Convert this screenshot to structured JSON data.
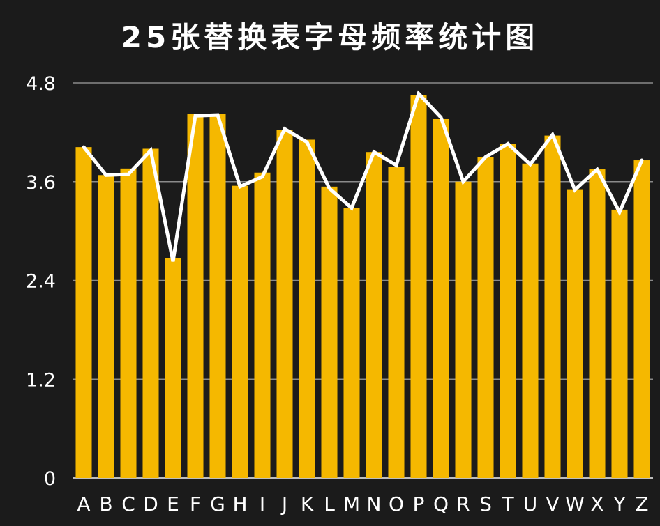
{
  "chart_data": {
    "type": "bar",
    "title": "25张替换表字母频率统计图",
    "xlabel": "",
    "ylabel": "",
    "ylim": [
      0,
      4.8
    ],
    "yticks": [
      "0",
      "1.2",
      "2.4",
      "3.6",
      "4.8"
    ],
    "grid": true,
    "categories": [
      "A",
      "B",
      "C",
      "D",
      "E",
      "F",
      "G",
      "H",
      "I",
      "J",
      "K",
      "L",
      "M",
      "N",
      "O",
      "P",
      "Q",
      "R",
      "S",
      "T",
      "U",
      "V",
      "W",
      "X",
      "Y",
      "Z"
    ],
    "series": [
      {
        "type": "bar",
        "values": [
          4.02,
          3.68,
          3.76,
          4.0,
          2.67,
          4.42,
          4.42,
          3.55,
          3.71,
          4.23,
          4.11,
          3.54,
          3.28,
          3.96,
          3.78,
          4.65,
          4.36,
          3.6,
          3.9,
          4.06,
          3.82,
          4.16,
          3.5,
          3.75,
          3.26,
          3.86
        ],
        "color": "#f5b800"
      },
      {
        "type": "line",
        "values": [
          4.02,
          3.68,
          3.69,
          3.98,
          2.63,
          4.4,
          4.41,
          3.54,
          3.66,
          4.24,
          4.08,
          3.52,
          3.28,
          3.96,
          3.8,
          4.67,
          4.38,
          3.6,
          3.9,
          4.06,
          3.81,
          4.17,
          3.5,
          3.75,
          3.23,
          3.86
        ],
        "color": "#ffffff"
      }
    ]
  }
}
